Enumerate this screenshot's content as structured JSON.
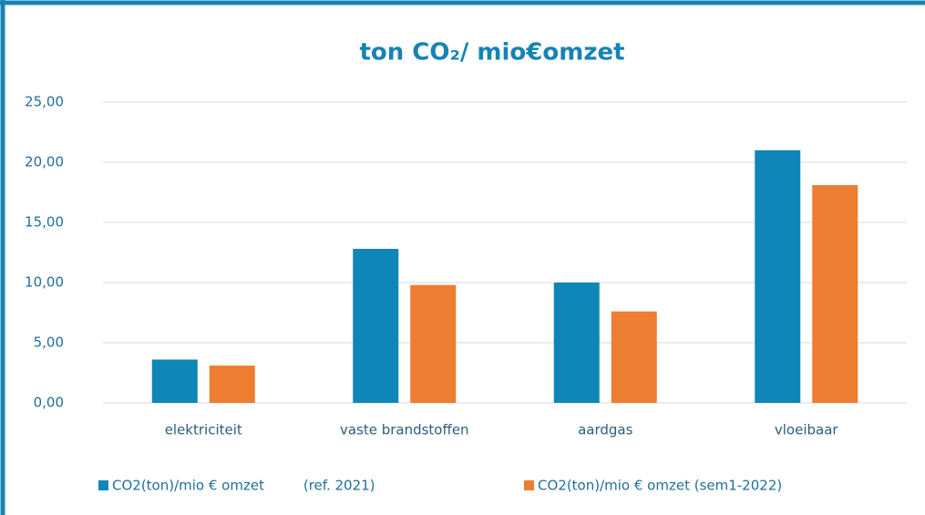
{
  "chart_data": {
    "type": "bar",
    "title": "ton CO₂/ mio€omzet",
    "categories": [
      "elektriciteit",
      "vaste brandstoffen",
      "aardgas",
      "vloeibaar"
    ],
    "series": [
      {
        "name": "CO2(ton)/mio € omzet         (ref. 2021)",
        "color": "#0e86b8",
        "values": [
          3.6,
          12.8,
          10.0,
          21.0
        ]
      },
      {
        "name": "CO2(ton)/mio € omzet (sem1-2022)",
        "color": "#ed7d31",
        "values": [
          3.1,
          9.8,
          7.6,
          18.1
        ]
      }
    ],
    "ylim": [
      0,
      25
    ],
    "yticks": [
      {
        "value": 0,
        "label": "0,00"
      },
      {
        "value": 5,
        "label": "5,00"
      },
      {
        "value": 10,
        "label": "10,00"
      },
      {
        "value": 15,
        "label": "15,00"
      },
      {
        "value": 20,
        "label": "20,00"
      },
      {
        "value": 25,
        "label": "25,00"
      }
    ],
    "grid": true,
    "legend": "bottom"
  }
}
